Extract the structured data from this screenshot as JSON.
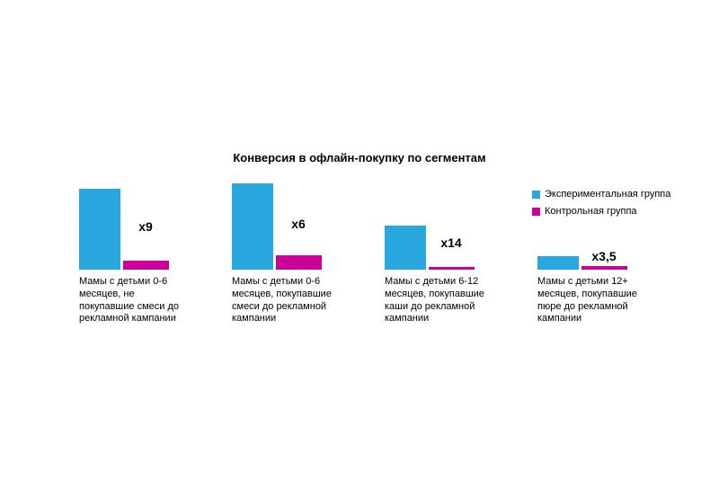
{
  "chart_data": {
    "type": "bar",
    "title": "Конверсия в офлайн-покупку по сегментам",
    "categories": [
      "Мамы с детьми 0-6 месяцев, не покупавшие смеси до рекламной кампании",
      "Мамы с детьми 0-6 месяцев, покупавшие смеси до рекламной кампании",
      "Мамы с детьми 6-12 месяцев, покупавшие каши до рекламной кампании",
      "Мамы с детьми 12+ месяцев, покупавшие пюре до рекламной кампании"
    ],
    "series": [
      {
        "name": "Экспериментальная группа",
        "color": "#29A8E0",
        "values": [
          90,
          96,
          49,
          15
        ]
      },
      {
        "name": "Контрольная группа",
        "color": "#CC0099",
        "values": [
          10,
          16,
          3.5,
          4.3
        ]
      }
    ],
    "multiplier_labels": [
      "x9",
      "x6",
      "x14",
      "x3,5"
    ],
    "unit": "relative bar height (experimental ≈ multiplier × control)",
    "xlabel": "",
    "ylabel": "",
    "grid": false,
    "axes_visible": false,
    "legend_position": "top-right"
  }
}
